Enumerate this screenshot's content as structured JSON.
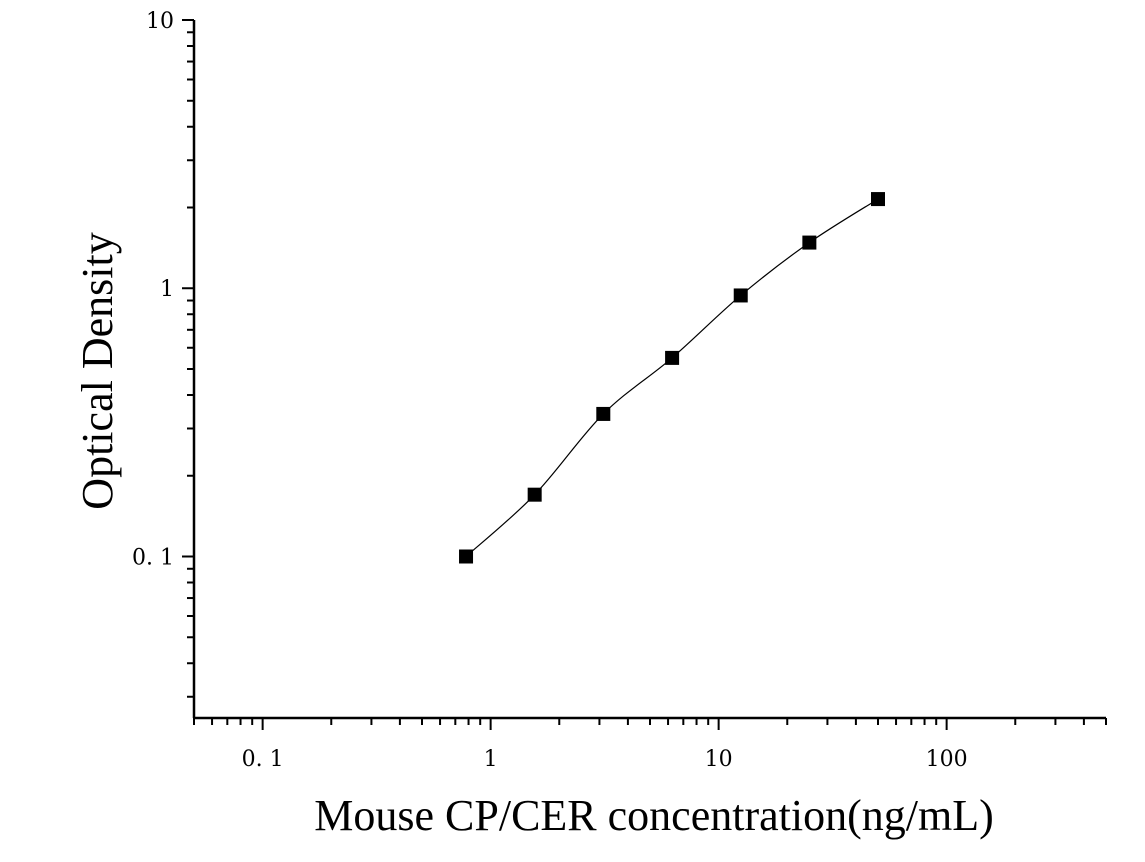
{
  "chart_data": {
    "type": "scatter",
    "xlabel": "Mouse CP/CER concentration(ng/mL)",
    "ylabel": "Optical Density",
    "x_scale": "log",
    "y_scale": "log",
    "xlim": [
      0.05,
      500
    ],
    "ylim": [
      0.025,
      10
    ],
    "x_ticks": [
      {
        "value": 0.1,
        "label": "0. 1"
      },
      {
        "value": 1,
        "label": "1"
      },
      {
        "value": 10,
        "label": "10"
      },
      {
        "value": 100,
        "label": "100"
      }
    ],
    "y_ticks": [
      {
        "value": 0.1,
        "label": "0. 1"
      },
      {
        "value": 1,
        "label": "1"
      },
      {
        "value": 10,
        "label": "10"
      }
    ],
    "grid": false,
    "marker": "square",
    "fit_curve": true,
    "series": [
      {
        "x": [
          0.78,
          1.56,
          3.12,
          6.25,
          12.5,
          25,
          50
        ],
        "y": [
          0.1,
          0.17,
          0.34,
          0.55,
          0.94,
          1.48,
          2.15
        ]
      }
    ]
  }
}
